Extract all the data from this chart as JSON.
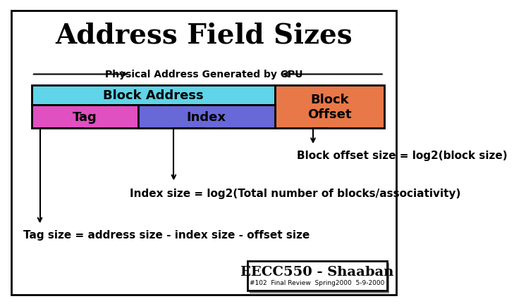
{
  "title": "Address Field Sizes",
  "title_fontsize": 28,
  "title_fontweight": "bold",
  "bg_color": "#ffffff",
  "border_color": "#000000",
  "physical_address_label": "Physical Address Generated by CPU",
  "block_address_label": "Block Address",
  "tag_label": "Tag",
  "index_label": "Index",
  "block_offset_label": "Block\nOffset",
  "block_address_color": "#60d4e8",
  "tag_color": "#e050c0",
  "index_color": "#6868d8",
  "block_offset_color": "#e87848",
  "annotation1": "Block offset size = log2(block size)",
  "annotation2": "Index size = log2(Total number of blocks/associativity)",
  "annotation3": "Tag size = address size - index size - offset size",
  "footer_main": "EECC550 - Shaaban",
  "footer_sub": "#102  Final Review  Spring2000  5-9-2000",
  "label_fontsize": 13,
  "annotation_fontsize": 11
}
